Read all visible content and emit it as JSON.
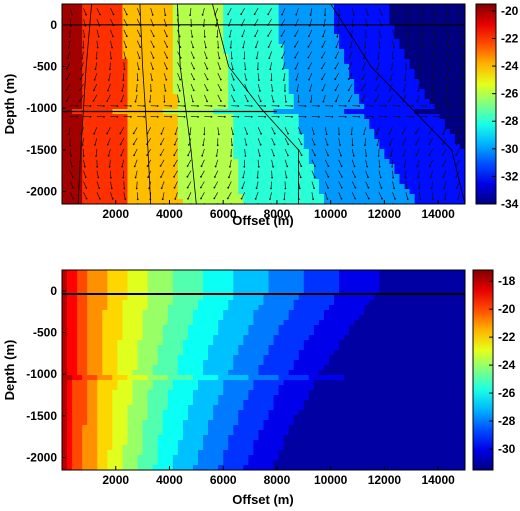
{
  "chart_data": [
    {
      "type": "heatmap",
      "title": "",
      "xlabel": "Offset (m)",
      "ylabel": "Depth (m)",
      "xlim": [
        0,
        15000
      ],
      "ylim": [
        -2150,
        250
      ],
      "xticks": [
        "2000",
        "4000",
        "6000",
        "8000",
        "10000",
        "12000",
        "14000"
      ],
      "yticks": [
        "0",
        "-500",
        "-1000",
        "-1500",
        "-2000"
      ],
      "colorbar": {
        "min": -34,
        "max": -19.5,
        "ticks": [
          "-20",
          "-22",
          "-24",
          "-26",
          "-28",
          "-30",
          "-32",
          "-34"
        ]
      },
      "contour_levels": [
        -22,
        -24,
        -26,
        -28,
        -30
      ],
      "overlay": "arrow vector field",
      "grid": false
    },
    {
      "type": "heatmap",
      "title": "",
      "xlabel": "Offset (m)",
      "ylabel": "Depth (m)",
      "xlim": [
        0,
        15000
      ],
      "ylim": [
        -2150,
        250
      ],
      "xticks": [
        "2000",
        "4000",
        "6000",
        "8000",
        "10000",
        "12000",
        "14000"
      ],
      "yticks": [
        "0",
        "-500",
        "-1000",
        "-1500",
        "-2000"
      ],
      "colorbar": {
        "min": -31.5,
        "max": -17.2,
        "ticks": [
          "-18",
          "-20",
          "-22",
          "-24",
          "-26",
          "-28",
          "-30"
        ]
      },
      "overlay": "none",
      "grid": false
    }
  ]
}
